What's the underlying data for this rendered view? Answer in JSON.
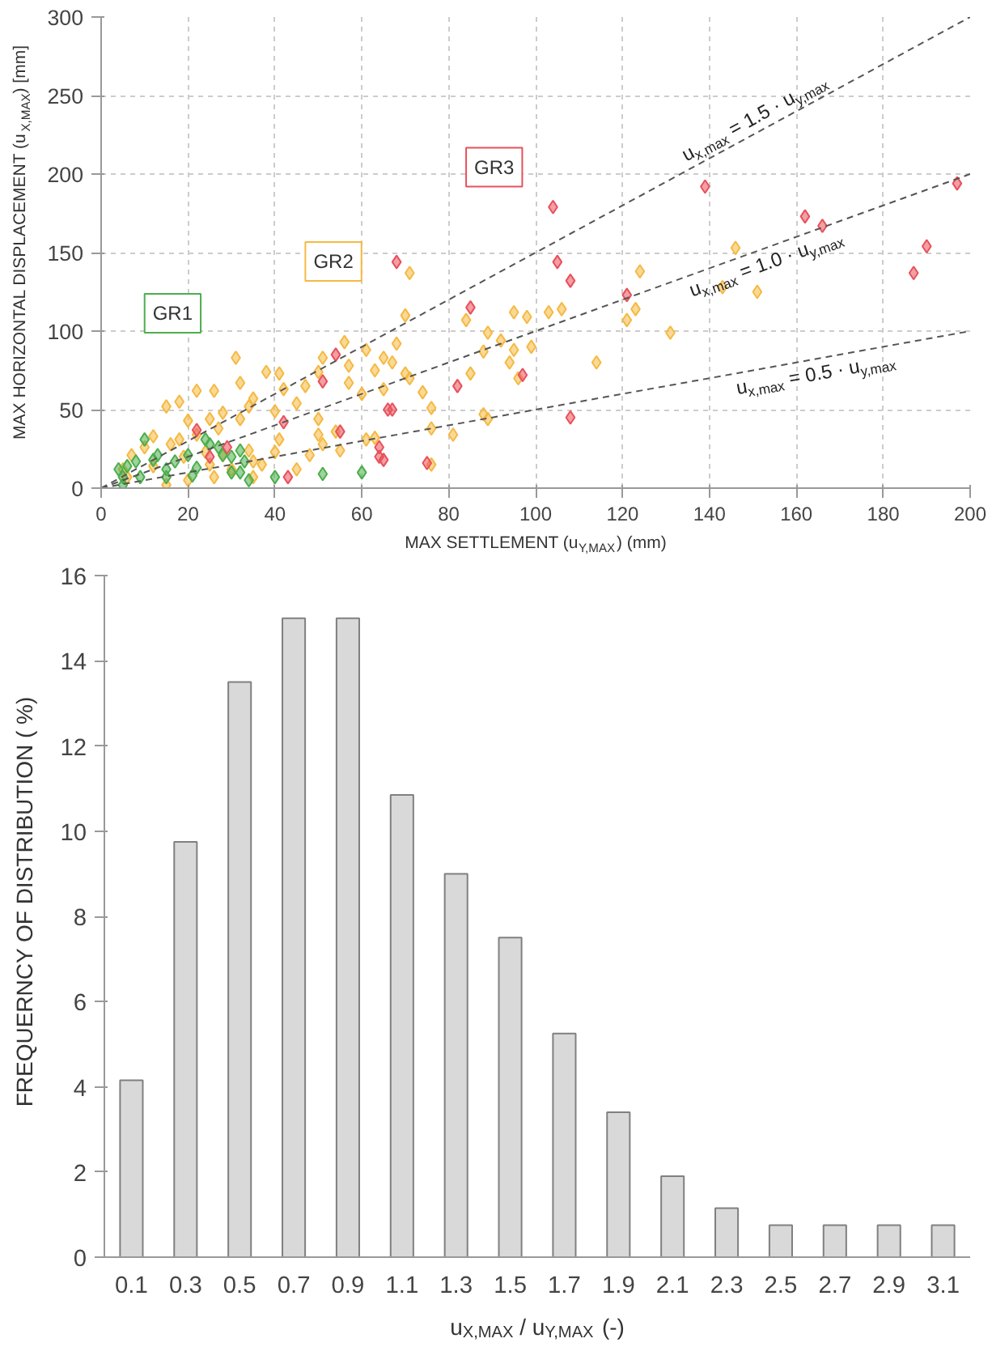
{
  "chart_data": [
    {
      "type": "scatter",
      "xlabel": "MAX SETTLEMENT  (u$_{Y,MAX}$) (mm)",
      "ylabel": "MAX HORIZONTAL DISPLACEMENT (u$_{X,MAX}$)  [mm]",
      "xlim": [
        0,
        200
      ],
      "ylim": [
        0,
        300
      ],
      "xticks": [
        0,
        20,
        40,
        60,
        80,
        100,
        120,
        140,
        160,
        180,
        200
      ],
      "yticks": [
        0,
        50,
        100,
        150,
        200,
        250,
        300
      ],
      "grid": true,
      "marker": "diamond",
      "series": [
        {
          "name": "GR2",
          "color": "#f5b942",
          "x": [
            71,
            70,
            124,
            123,
            121,
            106,
            103,
            98,
            95,
            89,
            92,
            88,
            95,
            99,
            94,
            84,
            85,
            114,
            96,
            68,
            61,
            63,
            65,
            67,
            70,
            71,
            74,
            76,
            65,
            60,
            56,
            57,
            57,
            88,
            89,
            76,
            81,
            61,
            63,
            55,
            76,
            54,
            146,
            143,
            151,
            131,
            31,
            22,
            18,
            26,
            15,
            38,
            41,
            32,
            35,
            42,
            47,
            51,
            50,
            45,
            20,
            25,
            28,
            32,
            34,
            40,
            50,
            50,
            40,
            37,
            27,
            22,
            18,
            12,
            10,
            7,
            16,
            24,
            28,
            34,
            19,
            25,
            30,
            35,
            12,
            26,
            20,
            15,
            35,
            48,
            51,
            45,
            41,
            6,
            5
          ],
          "values": [
            137,
            110,
            138,
            114,
            107,
            114,
            112,
            109,
            112,
            99,
            94,
            87,
            88,
            90,
            80,
            107,
            73,
            80,
            70,
            92,
            88,
            75,
            83,
            80,
            73,
            70,
            61,
            51,
            63,
            60,
            93,
            78,
            67,
            47,
            44,
            38,
            34,
            31,
            32,
            24,
            15,
            36,
            153,
            128,
            125,
            99,
            83,
            62,
            55,
            62,
            52,
            74,
            73,
            67,
            57,
            63,
            65,
            83,
            74,
            54,
            43,
            44,
            48,
            44,
            52,
            49,
            44,
            34,
            23,
            15,
            38,
            34,
            31,
            33,
            26,
            21,
            28,
            23,
            21,
            24,
            20,
            15,
            12,
            17,
            14,
            7,
            5,
            2,
            7,
            21,
            28,
            12,
            31,
            7,
            12
          ]
        },
        {
          "name": "GR1",
          "color": "#4cae4c",
          "x": [
            4,
            5,
            5,
            6,
            8,
            9,
            10,
            12,
            13,
            15,
            15,
            17,
            20,
            21,
            24,
            25,
            27,
            28,
            30,
            32,
            32,
            34,
            30,
            33,
            40,
            22,
            51,
            60
          ],
          "values": [
            12,
            2,
            7,
            14,
            17,
            7,
            31,
            18,
            21,
            7,
            12,
            17,
            21,
            8,
            31,
            28,
            26,
            21,
            20,
            24,
            10,
            5,
            10,
            17,
            7,
            13,
            9,
            10
          ]
        },
        {
          "name": "GR3",
          "color": "#e8505b",
          "x": [
            104,
            68,
            105,
            108,
            121,
            85,
            54,
            51,
            97,
            82,
            66,
            67,
            108,
            55,
            64,
            64,
            65,
            75,
            139,
            162,
            166,
            197,
            190,
            187,
            22,
            42,
            43,
            25,
            29
          ],
          "values": [
            179,
            144,
            144,
            132,
            123,
            115,
            85,
            68,
            72,
            65,
            50,
            50,
            45,
            36,
            26,
            20,
            18,
            16,
            192,
            173,
            167,
            194,
            154,
            137,
            37,
            42,
            7,
            20,
            26
          ]
        },
        {
          "type": "line",
          "marker": "none",
          "name": "u$_{x,max}$ = 1.5 · u$_{y,max}$",
          "color": "#555555",
          "line_style": "dashed",
          "x": [
            0,
            200
          ],
          "values": [
            0,
            300
          ]
        },
        {
          "type": "line",
          "marker": "none",
          "name": "u$_{x,max}$ = 1.0 · u$_{y,max}$",
          "color": "#555555",
          "line_style": "dashed",
          "x": [
            0,
            200
          ],
          "values": [
            0,
            200
          ]
        },
        {
          "type": "line",
          "marker": "none",
          "name": "u$_{x,max}$ = 0.5 · u$_{y,max}$",
          "color": "#555555",
          "line_style": "dashed",
          "x": [
            0,
            200
          ],
          "values": [
            0,
            100
          ]
        }
      ]
    },
    {
      "type": "bar",
      "xlabel": "u$_{X,MAX}$ / u$_{Y,MAX}$ (-)",
      "ylabel": "FREQUERNCY OF DISTRIBUTION  ( %)",
      "categories": [
        "0.1",
        "0.3",
        "0.5",
        "0.7",
        "0.9",
        "1.1",
        "1.3",
        "1.5",
        "1.7",
        "1.9",
        "2.1",
        "2.3",
        "2.5",
        "2.7",
        "2.9",
        "3.1"
      ],
      "values": [
        4.15,
        9.75,
        13.5,
        15,
        15,
        10.85,
        9,
        7.5,
        5.25,
        3.4,
        1.9,
        1.15,
        0.75,
        0.75,
        0.75,
        0.75
      ],
      "color": "#d9d9d9",
      "ylim": [
        0,
        16
      ],
      "yticks": [
        0,
        2,
        4,
        6,
        8,
        10,
        12,
        14,
        16
      ],
      "grid": false
    }
  ]
}
